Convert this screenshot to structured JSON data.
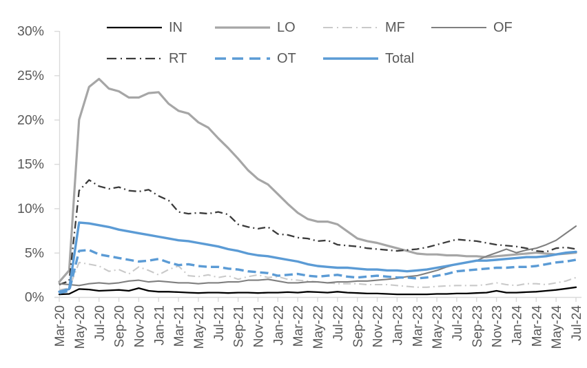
{
  "chart_data": {
    "type": "line",
    "title": "",
    "x_unit": "month",
    "x_start_label": "Mar-20",
    "x_end_label": "Jul-24",
    "points_per_tick": 2,
    "x_tick_labels": [
      "Mar-20",
      "May-20",
      "Jul-20",
      "Sep-20",
      "Nov-20",
      "Jan-21",
      "Mar-21",
      "May-21",
      "Jul-21",
      "Sep-21",
      "Nov-21",
      "Jan-22",
      "Mar-22",
      "May-22",
      "Jul-22",
      "Sep-22",
      "Nov-22",
      "Jan-23",
      "Mar-23",
      "May-23",
      "Jul-23",
      "Sep-23",
      "Nov-23",
      "Jan-24",
      "Mar-24",
      "May-24",
      "Jul-24"
    ],
    "y_tick_labels": [
      "30%",
      "25%",
      "20%",
      "15%",
      "10%",
      "5%",
      "0%"
    ],
    "ylim": [
      0,
      30
    ],
    "grid": "none",
    "legend_position": "top",
    "axis_color": "#D9D9D9",
    "label_color": "#595959",
    "series": [
      {
        "name": "IN",
        "color": "#000000",
        "style": "solid",
        "width": 2.3,
        "values": [
          0.3,
          0.35,
          0.9,
          0.85,
          0.7,
          0.75,
          0.8,
          0.7,
          1.0,
          0.7,
          0.6,
          0.6,
          0.55,
          0.5,
          0.45,
          0.5,
          0.5,
          0.45,
          0.5,
          0.5,
          0.45,
          0.5,
          0.5,
          0.55,
          0.5,
          0.6,
          0.55,
          0.5,
          0.6,
          0.5,
          0.45,
          0.4,
          0.4,
          0.35,
          0.3,
          0.3,
          0.3,
          0.3,
          0.35,
          0.35,
          0.4,
          0.4,
          0.45,
          0.5,
          0.7,
          0.5,
          0.5,
          0.55,
          0.6,
          0.7,
          0.8,
          0.95,
          1.1
        ]
      },
      {
        "name": "LO",
        "color": "#A6A6A6",
        "style": "solid",
        "width": 3.2,
        "values": [
          1.7,
          3.0,
          20.0,
          23.7,
          24.6,
          23.5,
          23.2,
          22.5,
          22.5,
          23.0,
          23.1,
          21.8,
          21.0,
          20.7,
          19.7,
          19.1,
          17.9,
          16.8,
          15.6,
          14.3,
          13.3,
          12.7,
          11.6,
          10.5,
          9.5,
          8.8,
          8.5,
          8.5,
          8.2,
          7.4,
          6.6,
          6.3,
          6.1,
          5.8,
          5.5,
          5.2,
          4.9,
          4.8,
          4.8,
          4.7,
          4.7,
          4.6,
          4.6,
          4.5,
          4.6,
          4.7,
          4.8,
          4.9,
          5.0,
          4.9,
          4.8,
          4.9,
          5.0
        ]
      },
      {
        "name": "MF",
        "color": "#C9C9C9",
        "style": "dash-dot",
        "width": 2.1,
        "values": [
          0.8,
          1.0,
          3.9,
          3.7,
          3.5,
          2.9,
          3.1,
          2.6,
          3.4,
          3.0,
          2.5,
          3.1,
          3.5,
          2.4,
          2.3,
          2.5,
          2.2,
          2.4,
          2.0,
          2.3,
          2.5,
          2.2,
          2.3,
          2.0,
          1.9,
          1.8,
          1.7,
          1.6,
          1.5,
          1.5,
          1.5,
          1.4,
          1.4,
          1.4,
          1.3,
          1.2,
          1.1,
          1.1,
          1.2,
          1.25,
          1.3,
          1.3,
          1.3,
          1.4,
          1.6,
          1.4,
          1.3,
          1.5,
          1.5,
          1.4,
          1.6,
          1.8,
          2.2
        ]
      },
      {
        "name": "OF",
        "color": "#7F7F7F",
        "style": "solid",
        "width": 2.1,
        "values": [
          1.5,
          1.4,
          1.3,
          1.5,
          1.6,
          1.5,
          1.6,
          1.8,
          1.9,
          1.7,
          1.8,
          1.7,
          1.6,
          1.6,
          1.5,
          1.6,
          1.6,
          1.7,
          1.7,
          1.9,
          1.9,
          2.0,
          1.8,
          1.6,
          1.6,
          1.7,
          1.7,
          1.6,
          1.7,
          1.7,
          1.8,
          1.8,
          1.9,
          2.0,
          2.1,
          2.3,
          2.4,
          2.7,
          3.0,
          3.4,
          3.7,
          3.9,
          4.1,
          4.6,
          5.0,
          5.4,
          5.0,
          5.3,
          5.5,
          5.9,
          6.4,
          7.2,
          8.0
        ]
      },
      {
        "name": "RT",
        "color": "#3A3A3A",
        "style": "dash-dot",
        "width": 2.3,
        "values": [
          1.4,
          1.8,
          12.0,
          13.2,
          12.5,
          12.2,
          12.4,
          12.0,
          11.9,
          12.1,
          11.4,
          10.9,
          9.6,
          9.4,
          9.5,
          9.4,
          9.6,
          9.3,
          8.2,
          7.9,
          7.7,
          7.9,
          7.1,
          7.0,
          6.7,
          6.6,
          6.3,
          6.4,
          5.9,
          5.8,
          5.7,
          5.5,
          5.4,
          5.3,
          5.2,
          5.3,
          5.4,
          5.6,
          5.9,
          6.2,
          6.5,
          6.4,
          6.3,
          6.1,
          5.9,
          5.8,
          5.7,
          5.5,
          5.2,
          5.1,
          5.5,
          5.6,
          5.4
        ]
      },
      {
        "name": "OT",
        "color": "#5B9BD5",
        "style": "dash",
        "width": 3.4,
        "values": [
          0.45,
          0.7,
          5.2,
          5.3,
          4.8,
          4.6,
          4.4,
          4.2,
          4.0,
          4.1,
          4.3,
          3.9,
          3.6,
          3.7,
          3.5,
          3.4,
          3.4,
          3.2,
          3.1,
          2.9,
          2.8,
          2.7,
          2.4,
          2.5,
          2.6,
          2.4,
          2.3,
          2.4,
          2.5,
          2.3,
          2.2,
          2.3,
          2.4,
          2.3,
          2.2,
          2.2,
          2.1,
          2.2,
          2.4,
          2.6,
          2.9,
          3.0,
          3.1,
          3.2,
          3.3,
          3.3,
          3.4,
          3.4,
          3.5,
          3.7,
          3.9,
          4.0,
          4.2
        ]
      },
      {
        "name": "Total",
        "color": "#5B9BD5",
        "style": "solid",
        "width": 3.4,
        "values": [
          0.6,
          0.9,
          8.4,
          8.3,
          8.1,
          7.9,
          7.6,
          7.4,
          7.2,
          7.0,
          6.8,
          6.6,
          6.4,
          6.3,
          6.1,
          5.9,
          5.7,
          5.4,
          5.2,
          4.9,
          4.7,
          4.6,
          4.4,
          4.2,
          4.0,
          3.7,
          3.5,
          3.4,
          3.3,
          3.3,
          3.2,
          3.1,
          3.1,
          3.0,
          3.0,
          2.9,
          3.0,
          3.1,
          3.3,
          3.5,
          3.7,
          3.9,
          4.1,
          4.1,
          4.2,
          4.3,
          4.4,
          4.5,
          4.5,
          4.6,
          4.8,
          5.0,
          5.1
        ]
      }
    ]
  }
}
